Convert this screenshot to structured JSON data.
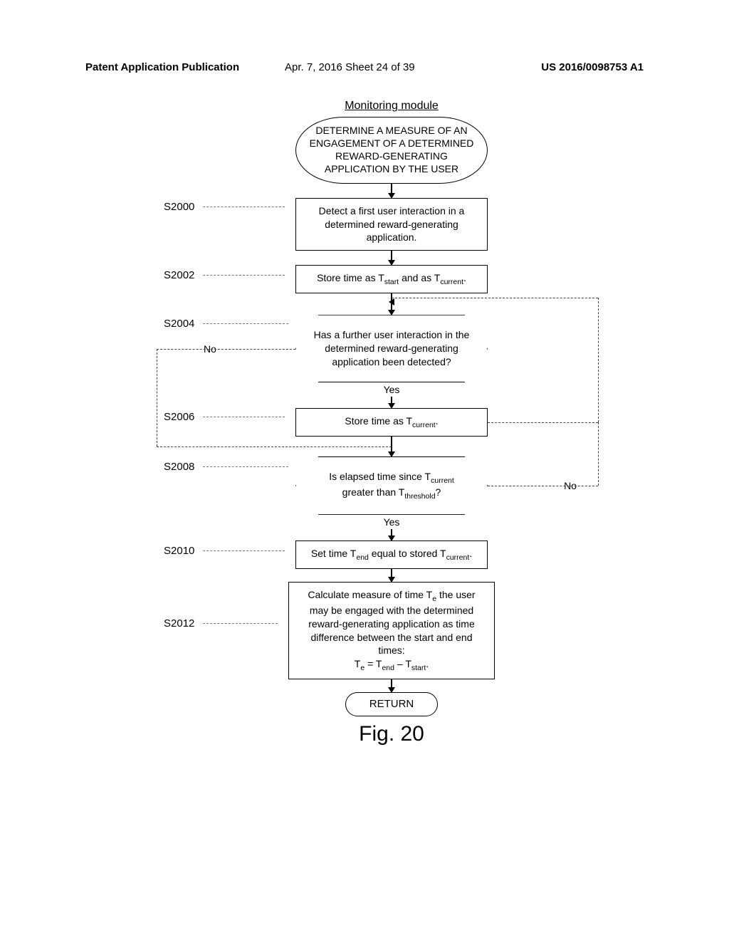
{
  "header": {
    "left": "Patent Application Publication",
    "mid": "Apr. 7, 2016   Sheet 24 of 39",
    "right": "US 2016/0098753 A1"
  },
  "diagram": {
    "title": "Monitoring module",
    "figure_label": "Fig. 20",
    "background_color": "#ffffff",
    "line_color": "#000000",
    "text_color": "#000000",
    "font_family": "Arial",
    "title_fontsize": 16,
    "node_fontsize": 14,
    "label_fontsize": 15,
    "nodes": [
      {
        "id": "start",
        "ref": "",
        "shape": "terminator",
        "text": "DETERMINE A MEASURE OF AN ENGAGEMENT OF A DETERMINED REWARD-GENERATING APPLICATION BY THE USER"
      },
      {
        "id": "s2000",
        "ref": "S2000",
        "shape": "rect",
        "text": "Detect a first user interaction in a determined reward-generating application."
      },
      {
        "id": "s2002",
        "ref": "S2002",
        "shape": "rect",
        "text_html": "Store time as T<sub>start</sub> and as T<sub>current</sub>."
      },
      {
        "id": "s2004",
        "ref": "S2004",
        "shape": "decision",
        "text": "Has a further user interaction in the determined reward-generating application been detected?",
        "out_yes": "Yes",
        "out_no": "No"
      },
      {
        "id": "s2006",
        "ref": "S2006",
        "shape": "rect",
        "text_html": "Store time as T<sub>current</sub>."
      },
      {
        "id": "s2008",
        "ref": "S2008",
        "shape": "decision",
        "text_html": "Is elapsed time since T<sub>current</sub> greater than T<sub>threshold</sub>?",
        "out_yes": "Yes",
        "out_no": "No"
      },
      {
        "id": "s2010",
        "ref": "S2010",
        "shape": "rect",
        "text_html": "Set time T<sub>end</sub> equal to stored T<sub>current</sub>."
      },
      {
        "id": "s2012",
        "ref": "S2012",
        "shape": "rect",
        "text_html": "Calculate measure of time T<sub>e</sub> the user may be engaged with the determined reward-generating application as time difference between the start and end times:<br>T<sub>e</sub> = T<sub>end</sub> – T<sub>start</sub>."
      },
      {
        "id": "return",
        "ref": "",
        "shape": "terminator-small",
        "text": "RETURN"
      }
    ],
    "edges": [
      {
        "from": "start",
        "to": "s2000"
      },
      {
        "from": "s2000",
        "to": "s2002"
      },
      {
        "from": "s2002",
        "to": "s2004",
        "loop_in": true
      },
      {
        "from": "s2004",
        "to": "s2006",
        "label": "Yes"
      },
      {
        "from": "s2004",
        "to": "s2008",
        "label": "No",
        "style": "dashed",
        "side": "left",
        "route": "down-left"
      },
      {
        "from": "s2006",
        "to": "s2004",
        "style": "dashed",
        "side": "right",
        "route": "loop-back-up"
      },
      {
        "from": "s2006",
        "to": "s2008"
      },
      {
        "from": "s2008",
        "to": "s2010",
        "label": "Yes"
      },
      {
        "from": "s2008",
        "to": "s2004",
        "label": "No",
        "style": "dashed",
        "side": "right",
        "route": "loop-back-up"
      },
      {
        "from": "s2010",
        "to": "s2012"
      },
      {
        "from": "s2012",
        "to": "return"
      }
    ]
  }
}
